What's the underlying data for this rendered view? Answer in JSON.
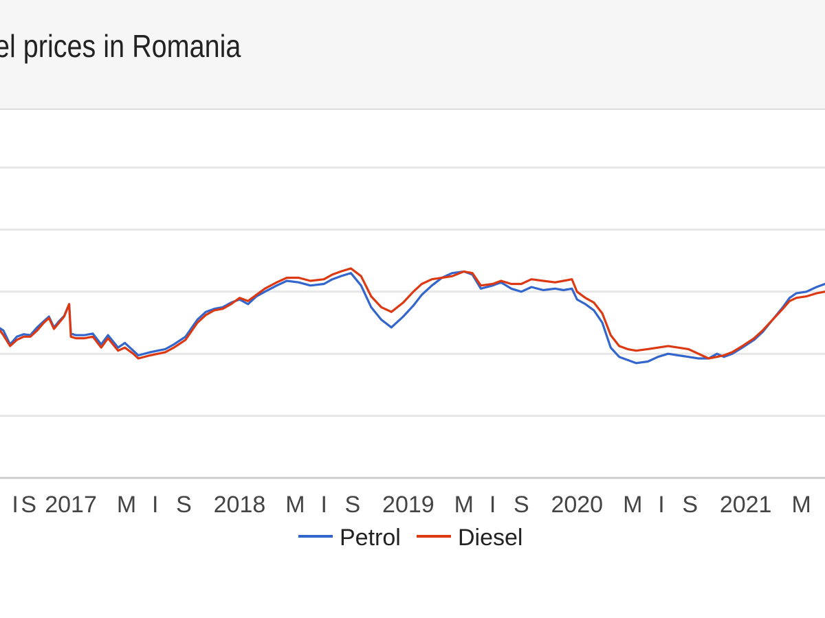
{
  "header": {
    "title": "el prices in Romania"
  },
  "chart_data": {
    "type": "line",
    "title": "el prices in Romania",
    "xlabel": "",
    "ylabel": "",
    "x_ticks": [
      {
        "t": 2016.67,
        "label": "I"
      },
      {
        "t": 2016.75,
        "label": "S"
      },
      {
        "t": 2017.0,
        "label": "2017"
      },
      {
        "t": 2017.33,
        "label": "M"
      },
      {
        "t": 2017.5,
        "label": "I"
      },
      {
        "t": 2017.67,
        "label": "S"
      },
      {
        "t": 2018.0,
        "label": "2018"
      },
      {
        "t": 2018.33,
        "label": "M"
      },
      {
        "t": 2018.5,
        "label": "I"
      },
      {
        "t": 2018.67,
        "label": "S"
      },
      {
        "t": 2019.0,
        "label": "2019"
      },
      {
        "t": 2019.33,
        "label": "M"
      },
      {
        "t": 2019.5,
        "label": "I"
      },
      {
        "t": 2019.67,
        "label": "S"
      },
      {
        "t": 2020.0,
        "label": "2020"
      },
      {
        "t": 2020.33,
        "label": "M"
      },
      {
        "t": 2020.5,
        "label": "I"
      },
      {
        "t": 2020.67,
        "label": "S"
      },
      {
        "t": 2021.0,
        "label": "2021"
      },
      {
        "t": 2021.33,
        "label": "M"
      }
    ],
    "grid": true,
    "legend_position": "bottom",
    "colors": {
      "Petrol": "#3366cc",
      "Diesel": "#dc3912"
    },
    "series": [
      {
        "name": "Petrol",
        "points": [
          [
            2016.58,
            0.482
          ],
          [
            2016.6,
            0.475
          ],
          [
            2016.64,
            0.43
          ],
          [
            2016.68,
            0.455
          ],
          [
            2016.72,
            0.463
          ],
          [
            2016.76,
            0.46
          ],
          [
            2016.8,
            0.485
          ],
          [
            2016.84,
            0.505
          ],
          [
            2016.87,
            0.52
          ],
          [
            2016.9,
            0.485
          ],
          [
            2016.93,
            0.505
          ],
          [
            2016.96,
            0.522
          ],
          [
            2016.99,
            0.56
          ],
          [
            2017.0,
            0.465
          ],
          [
            2017.03,
            0.46
          ],
          [
            2017.08,
            0.46
          ],
          [
            2017.13,
            0.465
          ],
          [
            2017.18,
            0.43
          ],
          [
            2017.22,
            0.46
          ],
          [
            2017.28,
            0.42
          ],
          [
            2017.32,
            0.435
          ],
          [
            2017.37,
            0.41
          ],
          [
            2017.4,
            0.395
          ],
          [
            2017.47,
            0.405
          ],
          [
            2017.56,
            0.415
          ],
          [
            2017.61,
            0.43
          ],
          [
            2017.68,
            0.455
          ],
          [
            2017.75,
            0.51
          ],
          [
            2017.8,
            0.535
          ],
          [
            2017.85,
            0.545
          ],
          [
            2017.9,
            0.55
          ],
          [
            2017.95,
            0.565
          ],
          [
            2018.0,
            0.575
          ],
          [
            2018.05,
            0.56
          ],
          [
            2018.1,
            0.585
          ],
          [
            2018.15,
            0.6
          ],
          [
            2018.22,
            0.62
          ],
          [
            2018.28,
            0.635
          ],
          [
            2018.35,
            0.63
          ],
          [
            2018.42,
            0.62
          ],
          [
            2018.5,
            0.625
          ],
          [
            2018.55,
            0.64
          ],
          [
            2018.6,
            0.65
          ],
          [
            2018.66,
            0.66
          ],
          [
            2018.72,
            0.62
          ],
          [
            2018.78,
            0.55
          ],
          [
            2018.84,
            0.51
          ],
          [
            2018.9,
            0.485
          ],
          [
            2018.97,
            0.52
          ],
          [
            2019.03,
            0.555
          ],
          [
            2019.08,
            0.59
          ],
          [
            2019.14,
            0.62
          ],
          [
            2019.2,
            0.645
          ],
          [
            2019.26,
            0.66
          ],
          [
            2019.33,
            0.665
          ],
          [
            2019.38,
            0.655
          ],
          [
            2019.43,
            0.61
          ],
          [
            2019.5,
            0.62
          ],
          [
            2019.55,
            0.63
          ],
          [
            2019.61,
            0.61
          ],
          [
            2019.67,
            0.6
          ],
          [
            2019.73,
            0.615
          ],
          [
            2019.8,
            0.605
          ],
          [
            2019.87,
            0.61
          ],
          [
            2019.92,
            0.605
          ],
          [
            2019.97,
            0.61
          ],
          [
            2020.0,
            0.575
          ],
          [
            2020.05,
            0.56
          ],
          [
            2020.1,
            0.54
          ],
          [
            2020.15,
            0.5
          ],
          [
            2020.2,
            0.42
          ],
          [
            2020.25,
            0.39
          ],
          [
            2020.3,
            0.38
          ],
          [
            2020.35,
            0.37
          ],
          [
            2020.42,
            0.375
          ],
          [
            2020.48,
            0.39
          ],
          [
            2020.54,
            0.4
          ],
          [
            2020.6,
            0.395
          ],
          [
            2020.66,
            0.39
          ],
          [
            2020.72,
            0.385
          ],
          [
            2020.78,
            0.385
          ],
          [
            2020.83,
            0.4
          ],
          [
            2020.87,
            0.39
          ],
          [
            2020.92,
            0.4
          ],
          [
            2020.98,
            0.42
          ],
          [
            2021.05,
            0.445
          ],
          [
            2021.1,
            0.47
          ],
          [
            2021.16,
            0.51
          ],
          [
            2021.22,
            0.55
          ],
          [
            2021.26,
            0.58
          ],
          [
            2021.3,
            0.595
          ],
          [
            2021.36,
            0.6
          ],
          [
            2021.42,
            0.615
          ],
          [
            2021.47,
            0.625
          ]
        ]
      },
      {
        "name": "Diesel",
        "points": [
          [
            2016.58,
            0.475
          ],
          [
            2016.6,
            0.46
          ],
          [
            2016.64,
            0.425
          ],
          [
            2016.68,
            0.445
          ],
          [
            2016.72,
            0.455
          ],
          [
            2016.76,
            0.455
          ],
          [
            2016.8,
            0.475
          ],
          [
            2016.84,
            0.5
          ],
          [
            2016.87,
            0.515
          ],
          [
            2016.9,
            0.48
          ],
          [
            2016.93,
            0.5
          ],
          [
            2016.96,
            0.52
          ],
          [
            2016.99,
            0.56
          ],
          [
            2017.0,
            0.455
          ],
          [
            2017.03,
            0.45
          ],
          [
            2017.08,
            0.45
          ],
          [
            2017.13,
            0.455
          ],
          [
            2017.18,
            0.42
          ],
          [
            2017.22,
            0.45
          ],
          [
            2017.28,
            0.41
          ],
          [
            2017.32,
            0.42
          ],
          [
            2017.37,
            0.4
          ],
          [
            2017.4,
            0.385
          ],
          [
            2017.47,
            0.395
          ],
          [
            2017.56,
            0.405
          ],
          [
            2017.61,
            0.42
          ],
          [
            2017.68,
            0.445
          ],
          [
            2017.75,
            0.5
          ],
          [
            2017.8,
            0.525
          ],
          [
            2017.85,
            0.54
          ],
          [
            2017.9,
            0.545
          ],
          [
            2017.95,
            0.56
          ],
          [
            2018.0,
            0.58
          ],
          [
            2018.05,
            0.57
          ],
          [
            2018.1,
            0.59
          ],
          [
            2018.15,
            0.61
          ],
          [
            2018.22,
            0.63
          ],
          [
            2018.28,
            0.645
          ],
          [
            2018.35,
            0.645
          ],
          [
            2018.42,
            0.635
          ],
          [
            2018.5,
            0.64
          ],
          [
            2018.55,
            0.655
          ],
          [
            2018.6,
            0.665
          ],
          [
            2018.66,
            0.675
          ],
          [
            2018.72,
            0.65
          ],
          [
            2018.78,
            0.585
          ],
          [
            2018.84,
            0.55
          ],
          [
            2018.9,
            0.535
          ],
          [
            2018.97,
            0.565
          ],
          [
            2019.03,
            0.6
          ],
          [
            2019.08,
            0.625
          ],
          [
            2019.14,
            0.64
          ],
          [
            2019.2,
            0.645
          ],
          [
            2019.26,
            0.65
          ],
          [
            2019.33,
            0.665
          ],
          [
            2019.38,
            0.66
          ],
          [
            2019.43,
            0.62
          ],
          [
            2019.5,
            0.625
          ],
          [
            2019.55,
            0.635
          ],
          [
            2019.61,
            0.625
          ],
          [
            2019.67,
            0.625
          ],
          [
            2019.73,
            0.64
          ],
          [
            2019.8,
            0.635
          ],
          [
            2019.87,
            0.63
          ],
          [
            2019.92,
            0.635
          ],
          [
            2019.97,
            0.64
          ],
          [
            2020.0,
            0.6
          ],
          [
            2020.05,
            0.58
          ],
          [
            2020.1,
            0.565
          ],
          [
            2020.15,
            0.53
          ],
          [
            2020.2,
            0.46
          ],
          [
            2020.25,
            0.425
          ],
          [
            2020.3,
            0.415
          ],
          [
            2020.35,
            0.41
          ],
          [
            2020.42,
            0.415
          ],
          [
            2020.48,
            0.42
          ],
          [
            2020.54,
            0.425
          ],
          [
            2020.6,
            0.42
          ],
          [
            2020.66,
            0.415
          ],
          [
            2020.72,
            0.4
          ],
          [
            2020.78,
            0.385
          ],
          [
            2020.83,
            0.39
          ],
          [
            2020.87,
            0.395
          ],
          [
            2020.92,
            0.405
          ],
          [
            2020.98,
            0.425
          ],
          [
            2021.05,
            0.45
          ],
          [
            2021.1,
            0.475
          ],
          [
            2021.16,
            0.51
          ],
          [
            2021.22,
            0.545
          ],
          [
            2021.26,
            0.57
          ],
          [
            2021.3,
            0.58
          ],
          [
            2021.36,
            0.585
          ],
          [
            2021.42,
            0.595
          ],
          [
            2021.47,
            0.6
          ]
        ]
      }
    ]
  }
}
